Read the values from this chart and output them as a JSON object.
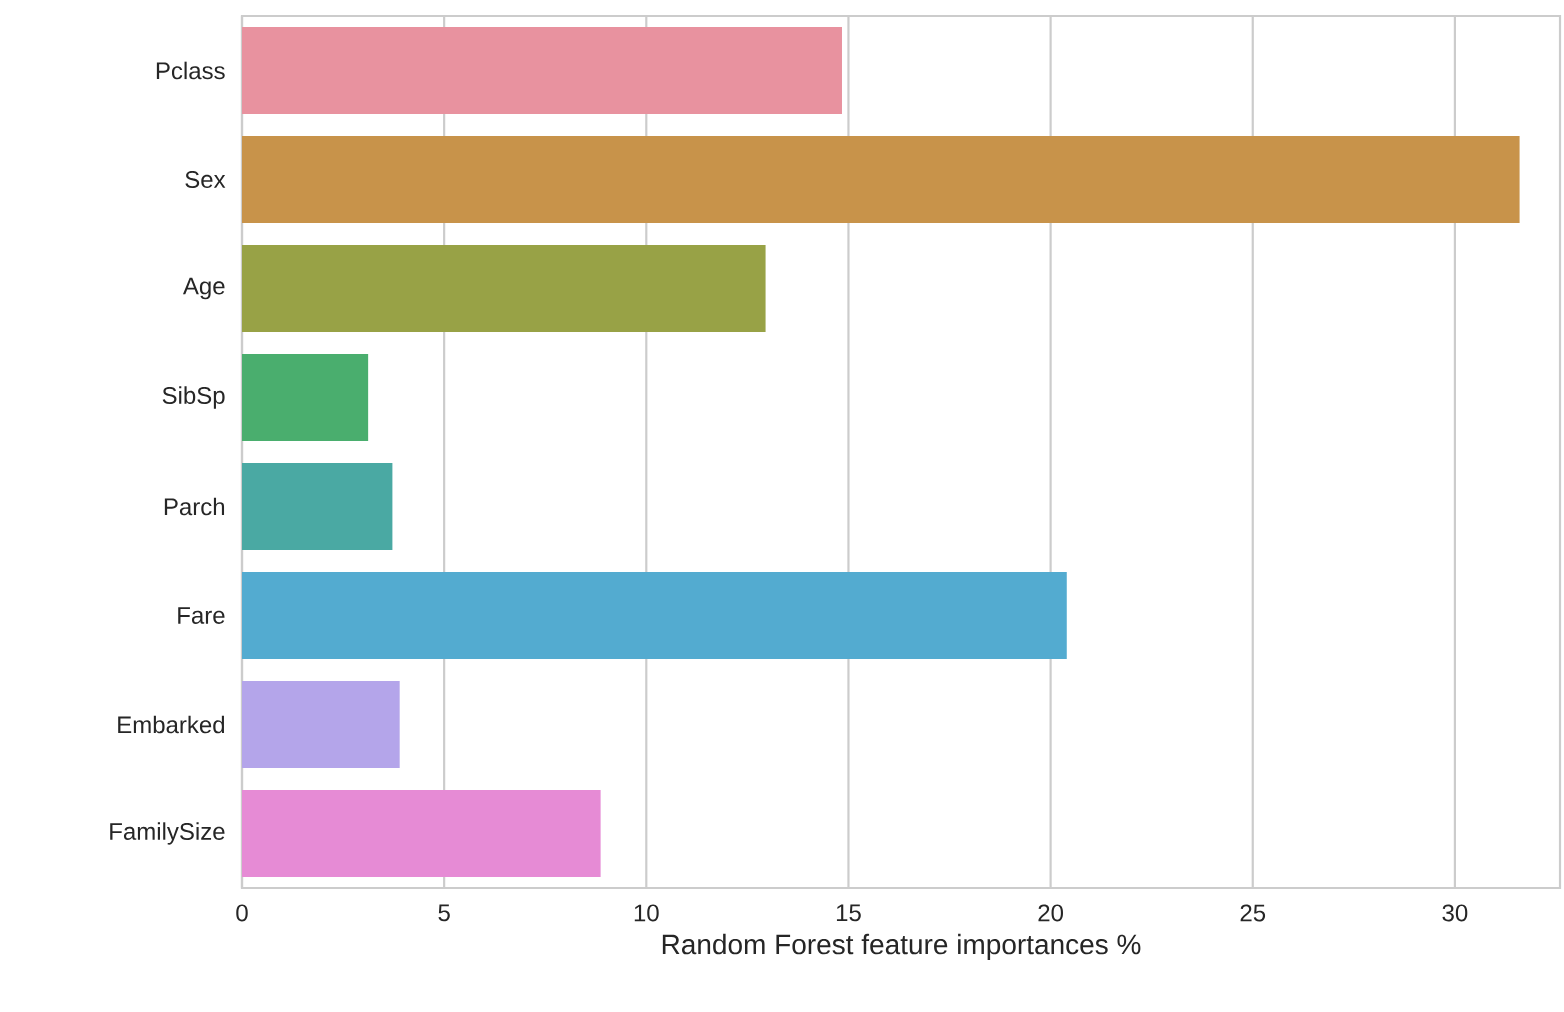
{
  "chart_data": {
    "type": "bar",
    "orientation": "horizontal",
    "xlabel": "Random Forest feature importances %",
    "categories": [
      "Pclass",
      "Sex",
      "Age",
      "SibSp",
      "Parch",
      "Fare",
      "Embarked",
      "FamilySize"
    ],
    "values": [
      14.84,
      31.6,
      12.95,
      3.12,
      3.72,
      20.4,
      3.9,
      8.87
    ],
    "colors": [
      "#e8929f",
      "#c8934a",
      "#98a246",
      "#4aae6e",
      "#4aa9a3",
      "#53abd0",
      "#b4a5ea",
      "#e68bd5"
    ],
    "xlim": [
      0,
      32.6
    ],
    "xticks": [
      0,
      5,
      10,
      15,
      20,
      25,
      30
    ],
    "grid": "x"
  }
}
